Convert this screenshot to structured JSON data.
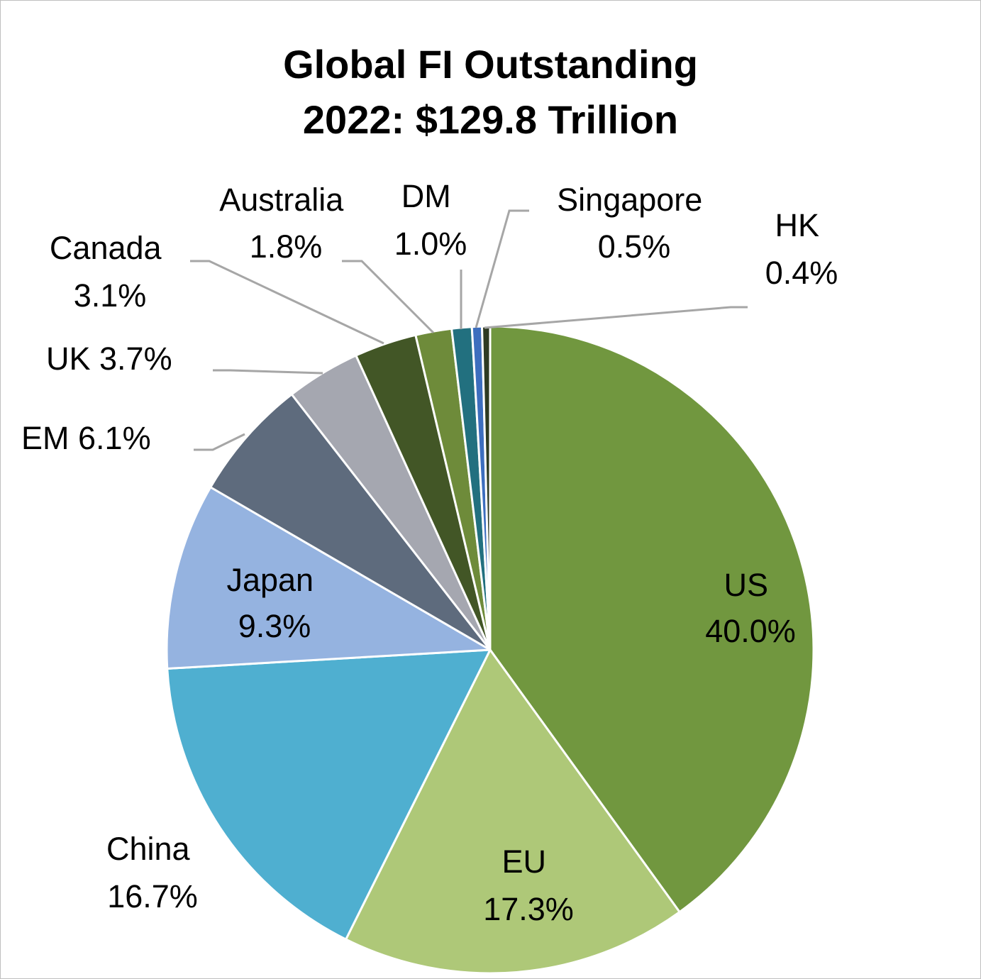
{
  "chart_data": {
    "type": "pie",
    "title_line1": "Global FI Outstanding",
    "title_line2": "2022: $129.8 Trillion",
    "slices": [
      {
        "label": "US",
        "value": 40.0,
        "value_text": "40.0%",
        "color": "#71973F"
      },
      {
        "label": "EU",
        "value": 17.3,
        "value_text": "17.3%",
        "color": "#AEC878"
      },
      {
        "label": "China",
        "value": 16.7,
        "value_text": "16.7%",
        "color": "#4FAFD0"
      },
      {
        "label": "Japan",
        "value": 9.3,
        "value_text": "9.3%",
        "color": "#95B3E0"
      },
      {
        "label": "EM",
        "value": 6.1,
        "value_text": "6.1%",
        "color": "#5E6B7D"
      },
      {
        "label": "UK",
        "value": 3.7,
        "value_text": "3.7%",
        "color": "#A5A7B0"
      },
      {
        "label": "Canada",
        "value": 3.1,
        "value_text": "3.1%",
        "color": "#425626"
      },
      {
        "label": "Australia",
        "value": 1.8,
        "value_text": "1.8%",
        "color": "#6E8B3A"
      },
      {
        "label": "DM",
        "value": 1.0,
        "value_text": "1.0%",
        "color": "#22707F"
      },
      {
        "label": "Singapore",
        "value": 0.5,
        "value_text": "0.5%",
        "color": "#3D6EBE"
      },
      {
        "label": "HK",
        "value": 0.4,
        "value_text": "0.4%",
        "color": "#2E3A22"
      }
    ],
    "legend": "none",
    "data_labels": "category and percent",
    "leader_line_color": "#A6A6A6"
  }
}
